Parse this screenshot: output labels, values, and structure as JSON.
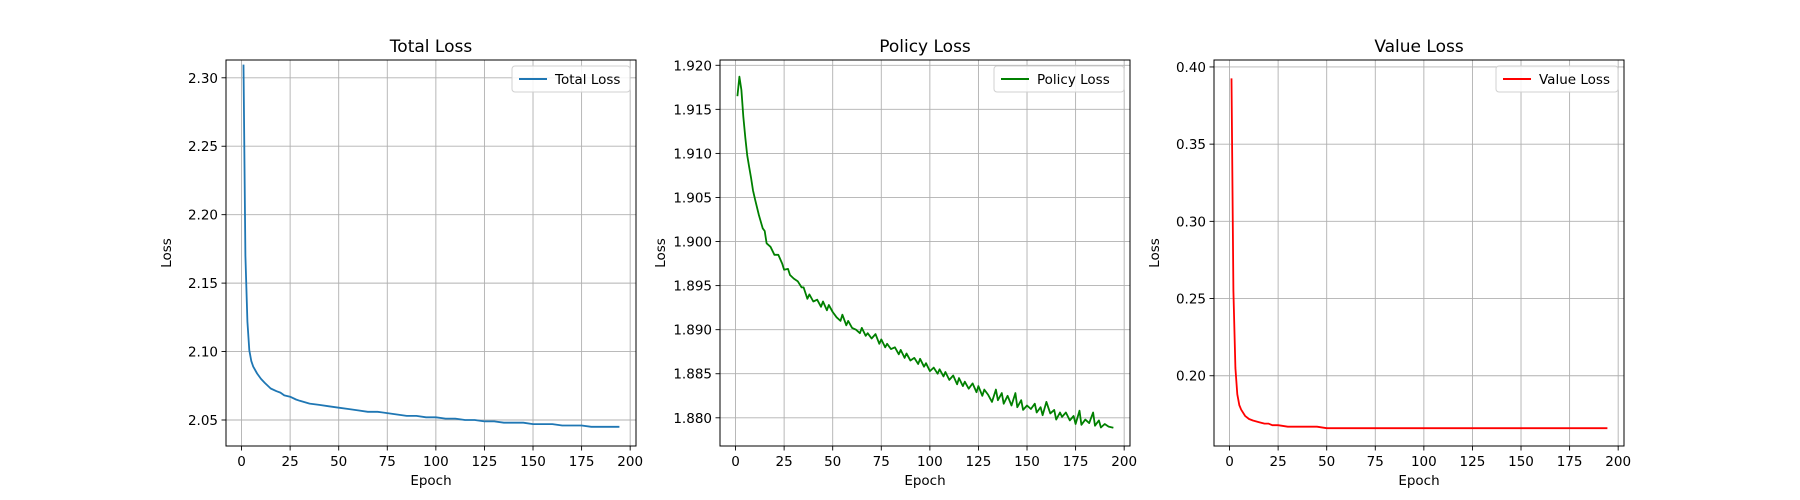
{
  "chart_data": [
    {
      "type": "line",
      "title": "Total Loss",
      "xlabel": "Epoch",
      "ylabel": "Loss",
      "xlim": [
        -8,
        203
      ],
      "ylim": [
        2.031,
        2.313
      ],
      "xticks": [
        0,
        25,
        50,
        75,
        100,
        125,
        150,
        175,
        200
      ],
      "yticks": [
        2.05,
        2.1,
        2.15,
        2.2,
        2.25,
        2.3
      ],
      "ytick_labels": [
        "2.05",
        "2.10",
        "2.15",
        "2.20",
        "2.25",
        "2.30"
      ],
      "grid": true,
      "legend": "upper right",
      "series": [
        {
          "name": "Total Loss",
          "color": "#1f77b4",
          "x": [
            1,
            2,
            3,
            4,
            5,
            6,
            8,
            10,
            12,
            15,
            18,
            20,
            22,
            25,
            28,
            30,
            35,
            40,
            45,
            50,
            55,
            60,
            65,
            70,
            75,
            80,
            85,
            90,
            95,
            100,
            105,
            110,
            115,
            120,
            125,
            130,
            135,
            140,
            145,
            150,
            155,
            160,
            165,
            170,
            175,
            180,
            185,
            190,
            194
          ],
          "values": [
            2.309,
            2.17,
            2.122,
            2.101,
            2.093,
            2.089,
            2.084,
            2.08,
            2.077,
            2.073,
            2.071,
            2.07,
            2.068,
            2.067,
            2.065,
            2.064,
            2.062,
            2.061,
            2.06,
            2.059,
            2.058,
            2.057,
            2.056,
            2.056,
            2.055,
            2.054,
            2.053,
            2.053,
            2.052,
            2.052,
            2.051,
            2.051,
            2.05,
            2.05,
            2.049,
            2.049,
            2.048,
            2.048,
            2.048,
            2.047,
            2.047,
            2.047,
            2.046,
            2.046,
            2.046,
            2.045,
            2.045,
            2.045,
            2.045
          ]
        }
      ]
    },
    {
      "type": "line",
      "title": "Policy Loss",
      "xlabel": "Epoch",
      "ylabel": "Loss",
      "xlim": [
        -8,
        203
      ],
      "ylim": [
        1.8768,
        1.9206
      ],
      "xticks": [
        0,
        25,
        50,
        75,
        100,
        125,
        150,
        175,
        200
      ],
      "yticks": [
        1.88,
        1.885,
        1.89,
        1.895,
        1.9,
        1.905,
        1.91,
        1.915,
        1.92
      ],
      "ytick_labels": [
        "1.880",
        "1.885",
        "1.890",
        "1.895",
        "1.900",
        "1.905",
        "1.910",
        "1.915",
        "1.920"
      ],
      "grid": true,
      "legend": "upper right",
      "series": [
        {
          "name": "Policy Loss",
          "color": "#008000",
          "x": [
            1,
            2,
            3,
            4,
            5,
            6,
            7,
            8,
            9,
            10,
            12,
            14,
            15,
            16,
            18,
            20,
            22,
            24,
            25,
            27,
            28,
            30,
            32,
            34,
            35,
            37,
            38,
            40,
            42,
            44,
            45,
            47,
            48,
            50,
            52,
            54,
            55,
            57,
            58,
            60,
            62,
            64,
            65,
            67,
            68,
            70,
            72,
            74,
            75,
            77,
            78,
            80,
            82,
            84,
            85,
            87,
            88,
            90,
            92,
            94,
            95,
            97,
            98,
            100,
            102,
            104,
            105,
            107,
            108,
            110,
            112,
            114,
            115,
            117,
            118,
            120,
            122,
            124,
            125,
            127,
            128,
            130,
            132,
            134,
            135,
            137,
            138,
            140,
            142,
            144,
            145,
            147,
            148,
            150,
            152,
            154,
            155,
            157,
            158,
            160,
            162,
            164,
            165,
            167,
            168,
            170,
            172,
            174,
            175,
            177,
            178,
            180,
            182,
            184,
            185,
            187,
            188,
            190,
            192,
            194
          ],
          "values": [
            1.9166,
            1.9187,
            1.9172,
            1.9142,
            1.9118,
            1.9098,
            1.9085,
            1.9072,
            1.9058,
            1.9048,
            1.903,
            1.9015,
            1.9012,
            1.8998,
            1.8994,
            1.8985,
            1.8985,
            1.8975,
            1.8968,
            1.8969,
            1.8962,
            1.8958,
            1.8955,
            1.8948,
            1.8948,
            1.8935,
            1.894,
            1.8932,
            1.8934,
            1.8926,
            1.8932,
            1.8922,
            1.8928,
            1.892,
            1.8914,
            1.891,
            1.8917,
            1.8905,
            1.891,
            1.8902,
            1.89,
            1.8896,
            1.8902,
            1.8893,
            1.8896,
            1.889,
            1.8895,
            1.8884,
            1.8889,
            1.888,
            1.8884,
            1.8878,
            1.888,
            1.8872,
            1.8877,
            1.8868,
            1.8873,
            1.8865,
            1.8868,
            1.8861,
            1.8867,
            1.8858,
            1.8862,
            1.8853,
            1.8857,
            1.885,
            1.8855,
            1.8847,
            1.8852,
            1.8843,
            1.8848,
            1.8838,
            1.8845,
            1.8836,
            1.8841,
            1.8833,
            1.8839,
            1.8829,
            1.8836,
            1.8825,
            1.8832,
            1.8826,
            1.8818,
            1.8832,
            1.882,
            1.8828,
            1.8816,
            1.8825,
            1.8814,
            1.8828,
            1.8812,
            1.882,
            1.8809,
            1.8814,
            1.881,
            1.8816,
            1.8806,
            1.8812,
            1.8803,
            1.8818,
            1.8805,
            1.8809,
            1.8798,
            1.8806,
            1.8801,
            1.8806,
            1.8797,
            1.8802,
            1.8793,
            1.8808,
            1.8792,
            1.8798,
            1.8794,
            1.8806,
            1.8791,
            1.8797,
            1.8789,
            1.8793,
            1.879,
            1.8789
          ]
        }
      ]
    },
    {
      "type": "line",
      "title": "Value Loss",
      "xlabel": "Epoch",
      "ylabel": "Loss",
      "xlim": [
        -8,
        203
      ],
      "ylim": [
        0.1545,
        0.4045
      ],
      "xticks": [
        0,
        25,
        50,
        75,
        100,
        125,
        150,
        175,
        200
      ],
      "yticks": [
        0.2,
        0.25,
        0.3,
        0.35,
        0.4
      ],
      "ytick_labels": [
        "0.20",
        "0.25",
        "0.30",
        "0.35",
        "0.40"
      ],
      "grid": true,
      "legend": "upper right",
      "series": [
        {
          "name": "Value Loss",
          "color": "#ff0000",
          "x": [
            1,
            2,
            3,
            4,
            5,
            6,
            8,
            10,
            12,
            15,
            18,
            20,
            22,
            25,
            30,
            35,
            40,
            45,
            50,
            55,
            60,
            70,
            80,
            90,
            100,
            110,
            120,
            130,
            140,
            150,
            160,
            170,
            180,
            190,
            194
          ],
          "values": [
            0.392,
            0.255,
            0.205,
            0.188,
            0.181,
            0.178,
            0.174,
            0.172,
            0.171,
            0.17,
            0.169,
            0.169,
            0.168,
            0.168,
            0.167,
            0.167,
            0.167,
            0.167,
            0.166,
            0.166,
            0.166,
            0.166,
            0.166,
            0.166,
            0.166,
            0.166,
            0.166,
            0.166,
            0.166,
            0.166,
            0.166,
            0.166,
            0.166,
            0.166,
            0.166
          ]
        }
      ]
    }
  ]
}
